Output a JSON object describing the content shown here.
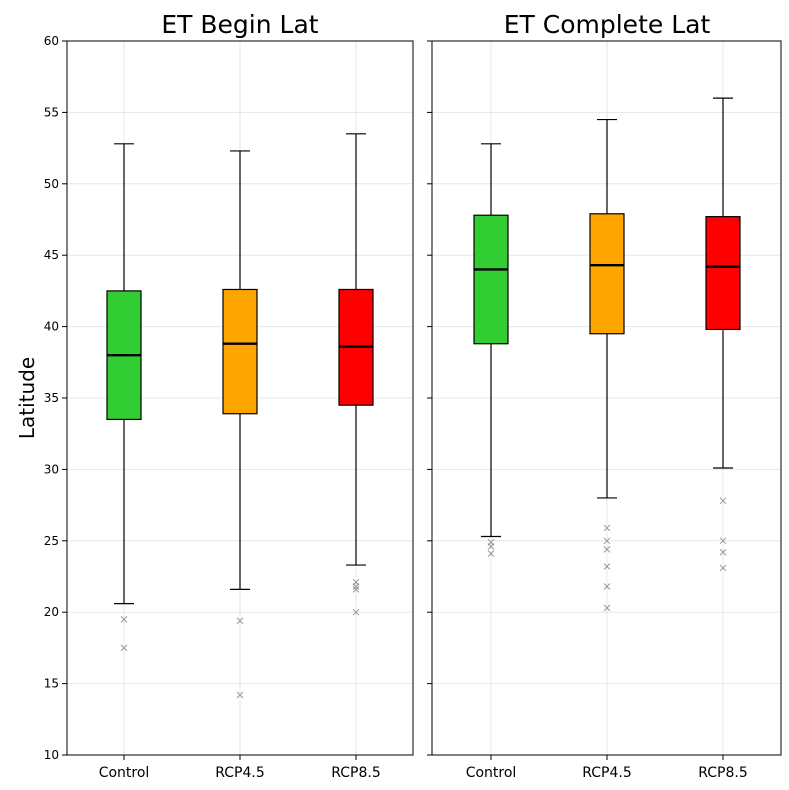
{
  "chart_data": [
    {
      "type": "box",
      "title": "ET Begin Lat",
      "ylabel": "Latitude",
      "ylim": [
        10,
        60
      ],
      "yticks": [
        10,
        15,
        20,
        25,
        30,
        35,
        40,
        45,
        50,
        55,
        60
      ],
      "grid": true,
      "categories": [
        "Control",
        "RCP4.5",
        "RCP8.5"
      ],
      "boxes": [
        {
          "category": "Control",
          "color": "#32cd32",
          "whisker_low": 20.6,
          "q1": 33.5,
          "median": 38.0,
          "q3": 42.5,
          "whisker_high": 52.8,
          "outliers": [
            19.5,
            17.5
          ]
        },
        {
          "category": "RCP4.5",
          "color": "#ffa500",
          "whisker_low": 21.6,
          "q1": 33.9,
          "median": 38.8,
          "q3": 42.6,
          "whisker_high": 52.3,
          "outliers": [
            19.4,
            14.2
          ]
        },
        {
          "category": "RCP8.5",
          "color": "#ff0000",
          "whisker_low": 23.3,
          "q1": 34.5,
          "median": 38.6,
          "q3": 42.6,
          "whisker_high": 53.5,
          "outliers": [
            22.1,
            21.8,
            21.6,
            20.0
          ]
        }
      ]
    },
    {
      "type": "box",
      "title": "ET Complete Lat",
      "ylabel": "",
      "ylim": [
        10,
        60
      ],
      "yticks": [
        10,
        15,
        20,
        25,
        30,
        35,
        40,
        45,
        50,
        55,
        60
      ],
      "grid": true,
      "categories": [
        "Control",
        "RCP4.5",
        "RCP8.5"
      ],
      "boxes": [
        {
          "category": "Control",
          "color": "#32cd32",
          "whisker_low": 25.3,
          "q1": 38.8,
          "median": 44.0,
          "q3": 47.8,
          "whisker_high": 52.8,
          "outliers": [
            24.9,
            24.6,
            24.1
          ]
        },
        {
          "category": "RCP4.5",
          "color": "#ffa500",
          "whisker_low": 28.0,
          "q1": 39.5,
          "median": 44.3,
          "q3": 47.9,
          "whisker_high": 54.5,
          "outliers": [
            25.9,
            25.0,
            24.4,
            23.2,
            21.8,
            20.3
          ]
        },
        {
          "category": "RCP8.5",
          "color": "#ff0000",
          "whisker_low": 30.1,
          "q1": 39.8,
          "median": 44.2,
          "q3": 47.7,
          "whisker_high": 56.0,
          "outliers": [
            27.8,
            25.0,
            24.2,
            23.1
          ]
        }
      ]
    }
  ]
}
